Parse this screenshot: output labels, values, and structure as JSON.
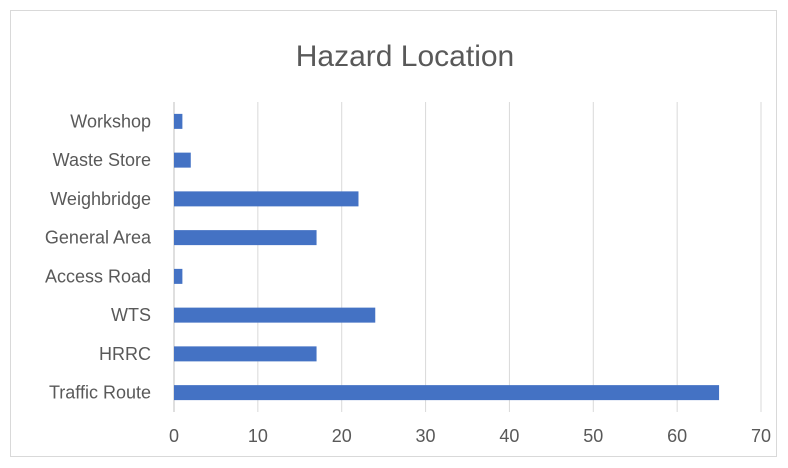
{
  "chart_data": {
    "type": "bar",
    "orientation": "horizontal",
    "title": "Hazard Location",
    "xlabel": "",
    "ylabel": "",
    "categories": [
      "Traffic Route",
      "HRRC",
      "WTS",
      "Access Road",
      "General Area",
      "Weighbridge",
      "Waste Store",
      "Workshop"
    ],
    "values": [
      65,
      17,
      24,
      1,
      17,
      22,
      2,
      1
    ],
    "xlim": [
      0,
      70
    ],
    "xticks": [
      "0",
      "10",
      "20",
      "30",
      "40",
      "50",
      "60",
      "70"
    ],
    "grid": true,
    "legend": "none",
    "bar_color": "#4472c4"
  }
}
